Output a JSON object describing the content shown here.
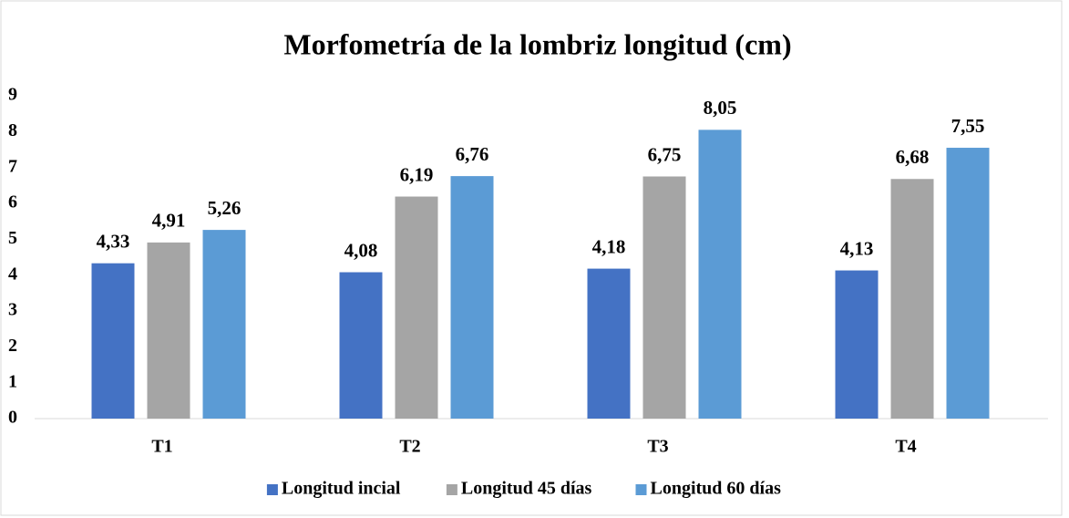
{
  "chart_data": {
    "type": "bar",
    "title": "Morfometría de la lombriz longitud  (cm)",
    "categories": [
      "T1",
      "T2",
      "T3",
      "T4"
    ],
    "series": [
      {
        "name": "Longitud incial",
        "color": "#4472c4",
        "values": [
          4.33,
          4.08,
          4.18,
          4.13
        ],
        "value_labels": [
          "4,33",
          "4,08",
          "4,18",
          "4,13"
        ]
      },
      {
        "name": "Longitud 45 días",
        "color": "#a5a5a5",
        "values": [
          4.91,
          6.19,
          6.75,
          6.68
        ],
        "value_labels": [
          "4,91",
          "6,19",
          "6,75",
          "6,68"
        ]
      },
      {
        "name": "Longitud 60 días",
        "color": "#5b9bd5",
        "values": [
          5.26,
          6.76,
          8.05,
          7.55
        ],
        "value_labels": [
          "5,26",
          "6,76",
          "8,05",
          "7,55"
        ]
      }
    ],
    "ylim": [
      0,
      9
    ],
    "yticks": [
      0,
      1,
      2,
      3,
      4,
      5,
      6,
      7,
      8,
      9
    ],
    "grid": false,
    "legend": "bottom"
  }
}
